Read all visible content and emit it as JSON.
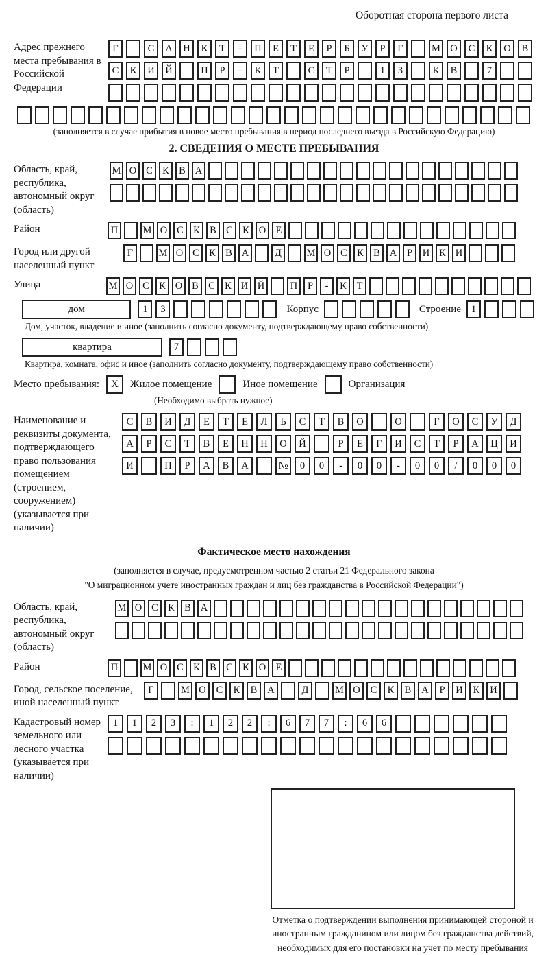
{
  "header": {
    "title": "Оборотная сторона первого листа"
  },
  "prev_address": {
    "label": "Адрес прежнего места пребывания в Российской Федерации",
    "rows": [
      "Г САНКТ-ПЕТЕРБУРГ МОСКОВ",
      "СКИЙ ПР-КТ СТР 13 КВ 7  ",
      "                        "
    ],
    "overflow_row": "                             ",
    "note": "(заполняется в случае прибытия в новое место пребывания в период последнего въезда в Российскую Федерацию)"
  },
  "section2": {
    "title": "2. СВЕДЕНИЯ О МЕСТЕ ПРЕБЫВАНИЯ",
    "region": {
      "label": "Область, край, республика, автономный округ (область)",
      "rows": [
        "МОСКВА                   ",
        "                         "
      ]
    },
    "district": {
      "label": "Район",
      "row": "П МОСКВСКОЕ              "
    },
    "city": {
      "label": "Город или другой населенный пункт",
      "row": "Г МОСКВА Д МОСКВАРИКИ   "
    },
    "street": {
      "label": "Улица",
      "row": "МОСКОВСКИЙ ПР-КТ          "
    },
    "house": {
      "box_label": "дом",
      "cells": "13      ",
      "korpus_label": "Корпус",
      "korpus_cells": "     ",
      "stroenie_label": "Строение",
      "stroenie_cells": "1   ",
      "note": "Дом, участок, владение и иное (заполнить согласно документу, подтверждающему право собственности)"
    },
    "apartment": {
      "box_label": "квартира",
      "cells": "7   ",
      "note": "Квартира, комната, офис и иное (заполнить согласно документу, подтверждающему право собственности)"
    },
    "place_type": {
      "label": "Место пребывания:",
      "options": [
        {
          "label": "Жилое помещение",
          "checked": "X"
        },
        {
          "label": "Иное помещение",
          "checked": ""
        },
        {
          "label": "Организация",
          "checked": ""
        }
      ],
      "note": "(Необходимо выбрать нужное)"
    },
    "document": {
      "label": "Наименование и реквизиты документа, подтверждающего право пользования помещением (строением, сооружением) (указывается при наличии)",
      "rows": [
        "СВИДЕТЕЛЬСТВО О ГОСУД",
        "АРСТВЕННОЙ РЕГИСТРАЦИ",
        "И ПРАВА №00-00-00/000"
      ]
    }
  },
  "actual_location": {
    "title": "Фактическое место нахождения",
    "note_line1": "(заполняется в случае, предусмотренном частью 2 статьи 21 Федерального закона",
    "note_line2": "\"О миграционном учете иностранных граждан и лиц без гражданства в Российской Федерации\")",
    "region": {
      "label": "Область, край, республика, автономный округ (область)",
      "rows": [
        "МОСКВА                   ",
        "                         "
      ]
    },
    "district": {
      "label": "Район",
      "row": "П МОСКВСКОЕ              "
    },
    "city": {
      "label": "Город, сельское поселение, иной населенный пункт",
      "row": "Г МОСКВА Д МОСКВАРИКИ "
    },
    "cadastral": {
      "label": "Кадастровый номер земельного или лесного участка (указывается при наличии)",
      "rows": [
        "1123:122:677:66      ",
        "                     "
      ]
    },
    "confirm_note": "Отметка о подтверждении выполнения принимающей стороной и иностранным гражданином или лицом без гражданства действий, необходимых для его постановки на учет по месту пребывания"
  }
}
